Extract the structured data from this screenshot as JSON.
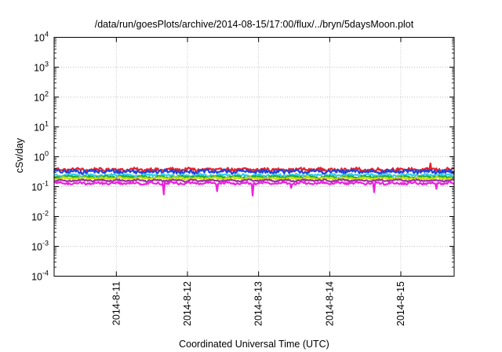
{
  "chart_data": {
    "type": "line",
    "title": "/data/run/goesPlots/archive/2014-08-15/17:00/flux/../bryn/5daysMoon.plot",
    "xlabel": "Coordinated Universal Time (UTC)",
    "ylabel": "cSv/day",
    "yscale": "log",
    "ylim": [
      0.0001,
      10000
    ],
    "xlim": [
      "2014-08-10T03:00",
      "2014-08-15T18:00"
    ],
    "x_ticks": [
      {
        "label": "2014-8-11",
        "date": "2014-08-11"
      },
      {
        "label": "2014-8-12",
        "date": "2014-08-12"
      },
      {
        "label": "2014-8-13",
        "date": "2014-08-13"
      },
      {
        "label": "2014-8-14",
        "date": "2014-08-14"
      },
      {
        "label": "2014-8-15",
        "date": "2014-08-15"
      }
    ],
    "y_ticks": [
      {
        "base": "10",
        "exp": "4",
        "value": 10000
      },
      {
        "base": "10",
        "exp": "3",
        "value": 1000
      },
      {
        "base": "10",
        "exp": "2",
        "value": 100
      },
      {
        "base": "10",
        "exp": "1",
        "value": 10
      },
      {
        "base": "10",
        "exp": "0",
        "value": 1
      },
      {
        "base": "10",
        "exp": "-1",
        "value": 0.1
      },
      {
        "base": "10",
        "exp": "-2",
        "value": 0.01
      },
      {
        "base": "10",
        "exp": "-3",
        "value": 0.001
      },
      {
        "base": "10",
        "exp": "-4",
        "value": 0.0001
      }
    ],
    "grid": true,
    "x_tick_label_orientation": "vertical",
    "series": [
      {
        "color": "#e8202a",
        "level": 0.37,
        "jitter": 0.13,
        "spikes": [
          {
            "date": "2014-08-15T10:00",
            "value": 0.6
          }
        ]
      },
      {
        "color": "#2244dd",
        "level": 0.32,
        "jitter": 0.14,
        "spikes": []
      },
      {
        "color": "#33ccee",
        "level": 0.24,
        "jitter": 0.09,
        "spikes": []
      },
      {
        "color": "#22aa33",
        "level": 0.21,
        "jitter": 0.07,
        "spikes": []
      },
      {
        "color": "#ccdd00",
        "level": 0.19,
        "jitter": 0.07,
        "spikes": []
      },
      {
        "color": "#9933aa",
        "level": 0.16,
        "jitter": 0.06,
        "spikes": []
      },
      {
        "color": "#ee22dd",
        "level": 0.13,
        "jitter": 0.08,
        "spikes": [
          {
            "date": "2014-08-11T16:00",
            "value": 0.055
          },
          {
            "date": "2014-08-12T10:00",
            "value": 0.07
          },
          {
            "date": "2014-08-12T22:00",
            "value": 0.05
          },
          {
            "date": "2014-08-13T11:00",
            "value": 0.09
          },
          {
            "date": "2014-08-14T15:00",
            "value": 0.065
          },
          {
            "date": "2014-08-15T12:00",
            "value": 0.085
          }
        ]
      }
    ]
  }
}
